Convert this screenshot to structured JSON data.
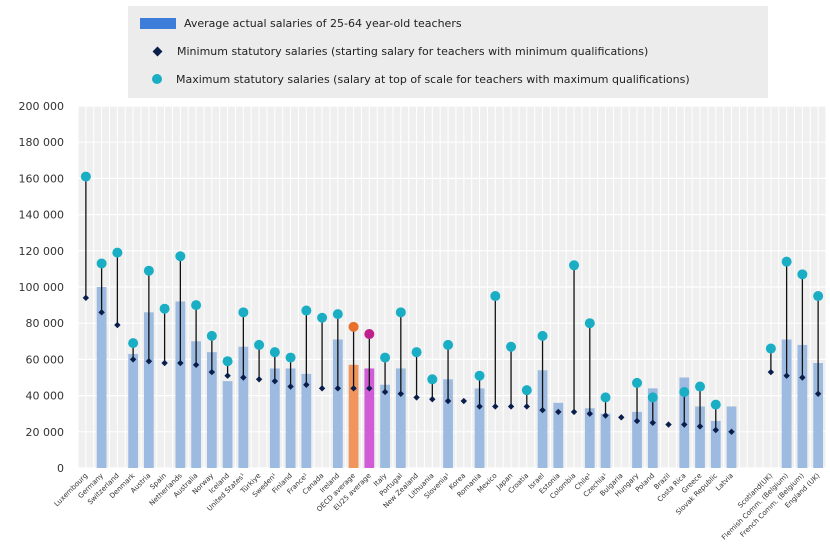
{
  "chart_data": {
    "type": "bar",
    "ylim": [
      0,
      200000
    ],
    "y_ticks": [
      "0",
      "20 000",
      "40 000",
      "60 000",
      "80 000",
      "100 000",
      "120 000",
      "140 000",
      "160 000",
      "180 000",
      "200 000"
    ],
    "grid": true,
    "legend_position": "top",
    "series": [
      {
        "name": "Average actual salaries of 25-64 year-old teachers",
        "kind": "bar",
        "color": "#9dbbe0"
      },
      {
        "name": "Minimum statutory salaries (starting salary for teachers with minimum qualifications)",
        "kind": "marker-diamond",
        "color": "#0b1d4a"
      },
      {
        "name": "Maximum statutory salaries (salary at top of scale for teachers with maximum qualifications)",
        "kind": "marker-circle",
        "color": "#19aec4"
      }
    ],
    "categories": [
      "Luxembourg",
      "Germany",
      "Switzerland",
      "Denmark",
      "Austria",
      "Spain",
      "Netherlands",
      "Australia",
      "Norway",
      "Iceland",
      "United States",
      "Türkiye",
      "Sweden",
      "Finland",
      "France",
      "Canada",
      "Ireland",
      "OECD average",
      "EU25 average",
      "Italy",
      "Portugal",
      "New Zealand",
      "Lithuania",
      "Slovenia",
      "Korea",
      "Romania",
      "Mexico",
      "Japan",
      "Croatia",
      "Israel",
      "Estonia",
      "Colombia",
      "Chile",
      "Czechia",
      "Bulgaria",
      "Hungary",
      "Poland",
      "Brazil",
      "Costa Rica",
      "Greece",
      "Slovak Republic",
      "Latvia",
      "Scotland (UK)",
      "Flemish Comm. (Belgium)",
      "French Comm. (Belgium)",
      "England (UK)"
    ],
    "category_labels": [
      "Luxembourg",
      "Germany",
      "Switzerland",
      "Denmark",
      "Austria",
      "Spain",
      "Netherlands",
      "Australia",
      "Norway",
      "Iceland",
      "United States¹",
      "Türkiye",
      "Sweden¹",
      "Finland",
      "France¹",
      "Canada",
      "Ireland",
      "OECD average",
      "EU25 average",
      "Italy",
      "Portugal",
      "New Zealand",
      "Lithuania",
      "Slovenia¹",
      "Korea",
      "Romania",
      "Mexico",
      "Japan",
      "Croatia",
      "Israel",
      "Estonia",
      "Colombia",
      "Chile¹",
      "Czechia¹",
      "Bulgaria",
      "Hungary",
      "Poland",
      "Brazil",
      "Costa Rica",
      "Greece",
      "Slovak Republic",
      "Latvia",
      "Scotland(UK)",
      "Flemish Comm. (Belgium)",
      "French Comm. (Belgium)",
      "England (UK)"
    ],
    "group_gap_before_index": 42,
    "highlight": {
      "OECD average": "#f0955c",
      "EU25 average": "#d05cd8"
    },
    "highlight_marker": {
      "OECD average": "#e8702a",
      "EU25 average": "#c0208c"
    },
    "actual": [
      null,
      100000,
      null,
      63000,
      86000,
      null,
      92000,
      70000,
      64000,
      48000,
      67000,
      null,
      55000,
      55000,
      52000,
      null,
      71000,
      57000,
      55000,
      46000,
      55000,
      null,
      null,
      49000,
      null,
      44000,
      null,
      null,
      null,
      54000,
      36000,
      null,
      33000,
      30000,
      null,
      31000,
      44000,
      null,
      50000,
      34000,
      26000,
      34000,
      null,
      71000,
      68000,
      58000
    ],
    "minimum": [
      94000,
      86000,
      79000,
      60000,
      59000,
      58000,
      58000,
      57000,
      53000,
      51000,
      50000,
      49000,
      48000,
      45000,
      46000,
      44000,
      44000,
      44000,
      44000,
      42000,
      41000,
      39000,
      38000,
      37000,
      37000,
      34000,
      34000,
      34000,
      34000,
      32000,
      31000,
      31000,
      30000,
      29000,
      28000,
      26000,
      25000,
      24000,
      24000,
      23000,
      21000,
      20000,
      53000,
      51000,
      50000,
      41000
    ],
    "maximum": [
      161000,
      113000,
      119000,
      69000,
      109000,
      88000,
      117000,
      90000,
      73000,
      59000,
      86000,
      68000,
      64000,
      61000,
      87000,
      83000,
      85000,
      78000,
      74000,
      61000,
      86000,
      64000,
      49000,
      68000,
      null,
      51000,
      95000,
      67000,
      43000,
      73000,
      null,
      112000,
      80000,
      39000,
      null,
      47000,
      39000,
      null,
      42000,
      45000,
      35000,
      null,
      66000,
      114000,
      107000,
      95000
    ]
  }
}
